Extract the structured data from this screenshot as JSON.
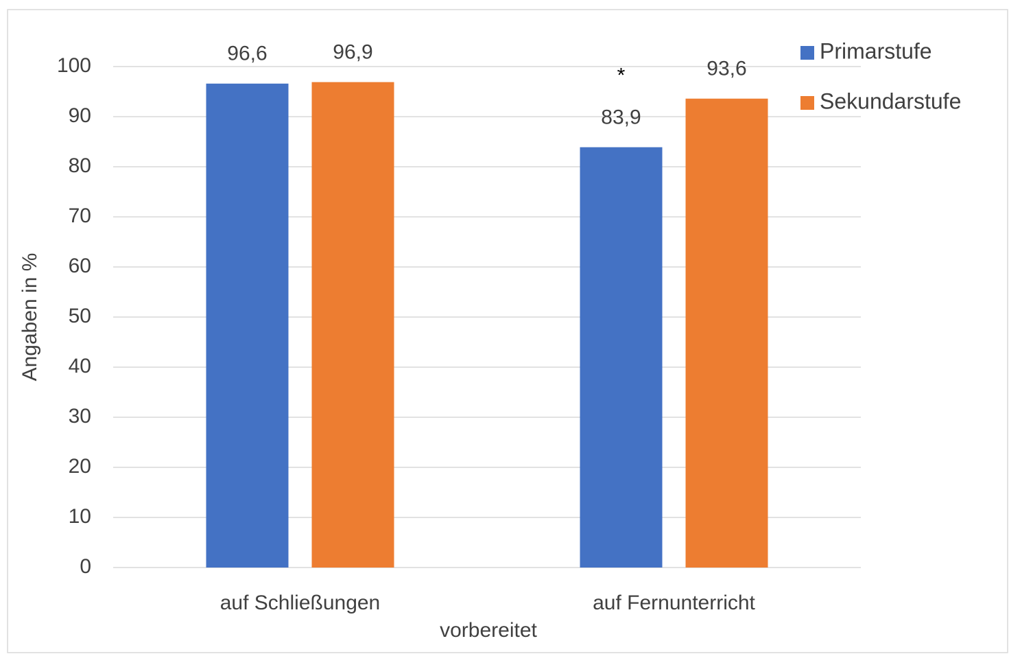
{
  "chart_data": {
    "type": "bar",
    "categories": [
      "auf Schließungen",
      "auf Fernunterricht"
    ],
    "series": [
      {
        "name": "Primarstufe",
        "color": "#4472c4",
        "values": [
          96.6,
          83.9
        ],
        "value_labels": [
          "96,6",
          "83,9"
        ]
      },
      {
        "name": "Sekundarstufe",
        "color": "#ed7d31",
        "values": [
          96.9,
          93.6
        ],
        "value_labels": [
          "96,9",
          "93,6"
        ]
      }
    ],
    "x_label": "vorbereitet",
    "y_label": "Angaben in %",
    "annotation": "*",
    "ylim": [
      0,
      100
    ],
    "yticks": [
      0,
      10,
      20,
      30,
      40,
      50,
      60,
      70,
      80,
      90,
      100
    ],
    "grid": true,
    "legend": "top-right"
  }
}
